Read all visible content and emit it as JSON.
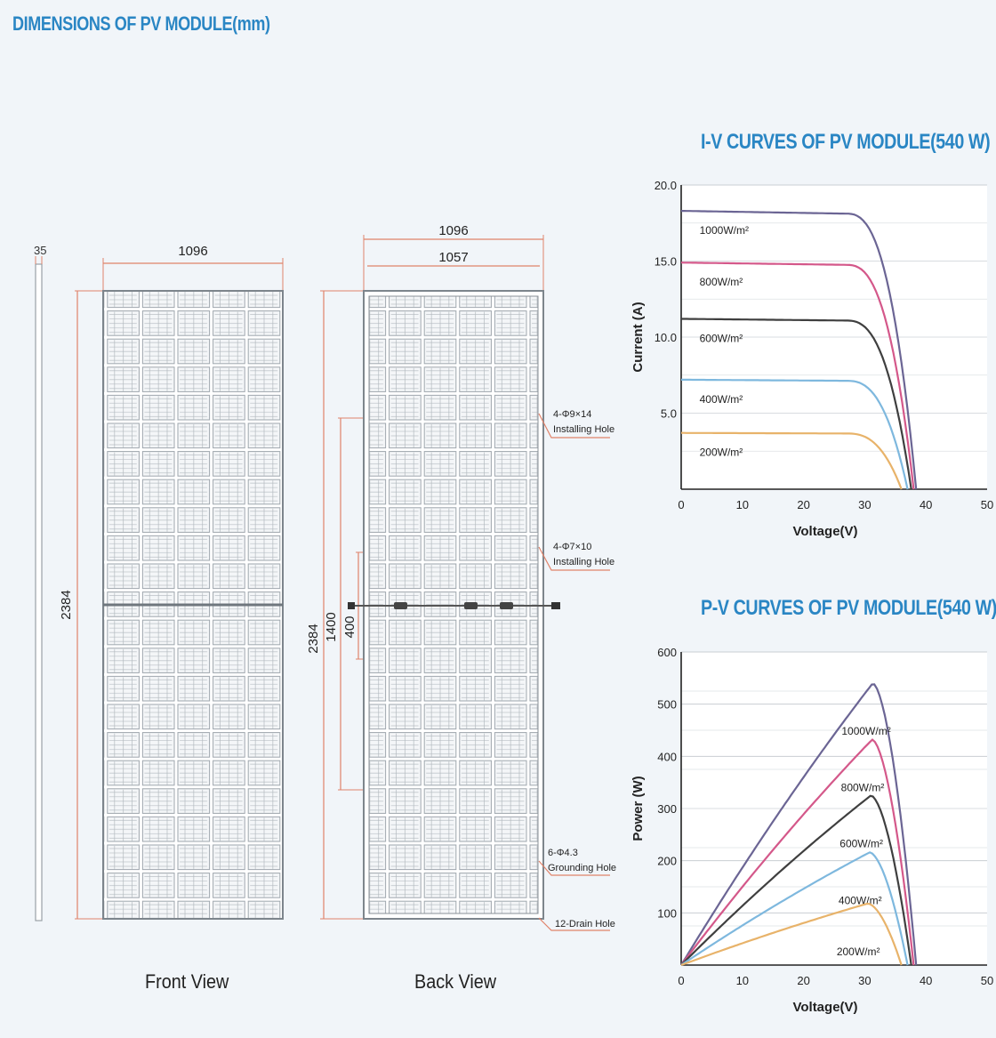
{
  "page": {
    "title": "DIMENSIONS OF PV MODULE(mm)"
  },
  "front_view": {
    "caption": "Front View",
    "frame_thickness": "35",
    "width": "1096",
    "height": "2384"
  },
  "back_view": {
    "caption": "Back View",
    "width_outer": "1096",
    "width_inner": "1057",
    "height": "2384",
    "hole_span_1400": "1400",
    "hole_span_400": "400",
    "callouts": [
      {
        "line1": "4-Φ9×14",
        "line2": "Installing Hole"
      },
      {
        "line1": "4-Φ7×10",
        "line2": "Installing Hole"
      },
      {
        "line1": "6-Φ4.3",
        "line2": "Grounding Hole"
      },
      {
        "line1": "12-Drain Hole",
        "line2": ""
      }
    ]
  },
  "colors": {
    "title_blue": "#2a86c4",
    "dimension_line": "#e0836a",
    "curve_1000": "#6b6594",
    "curve_800": "#d4588a",
    "curve_600": "#3f3f3f",
    "curve_400": "#7eb8de",
    "curve_200": "#e8b36a"
  },
  "chart_data": [
    {
      "type": "line",
      "title": "I-V CURVES OF PV MODULE(540 W)",
      "xlabel": "Voltage(V)",
      "ylabel": "Current (A)",
      "xlim": [
        0,
        50
      ],
      "ylim": [
        0,
        20
      ],
      "x_ticks": [
        "0",
        "10",
        "20",
        "30",
        "40",
        "50"
      ],
      "y_ticks": [
        "5.0",
        "10.0",
        "15.0",
        "20.0"
      ],
      "grid": true,
      "series": [
        {
          "name": "1000W/m²",
          "isc": 18.3,
          "voc": 38.4,
          "knee": 27
        },
        {
          "name": "800W/m²",
          "isc": 14.9,
          "voc": 38.0,
          "knee": 27
        },
        {
          "name": "600W/m²",
          "isc": 11.2,
          "voc": 37.6,
          "knee": 27
        },
        {
          "name": "400W/m²",
          "isc": 7.2,
          "voc": 37.0,
          "knee": 27
        },
        {
          "name": "200W/m²",
          "isc": 3.7,
          "voc": 36.0,
          "knee": 27
        }
      ]
    },
    {
      "type": "line",
      "title": "P-V CURVES OF PV MODULE(540 W)",
      "xlabel": "Voltage(V)",
      "ylabel": "Power (W)",
      "xlim": [
        0,
        50
      ],
      "ylim": [
        0,
        600
      ],
      "x_ticks": [
        "0",
        "10",
        "20",
        "30",
        "40",
        "50"
      ],
      "y_ticks": [
        "100",
        "200",
        "300",
        "400",
        "500",
        "600"
      ],
      "grid": true,
      "series": [
        {
          "name": "1000W/m²",
          "vmp": 31.3,
          "pmax": 540,
          "voc": 38.4
        },
        {
          "name": "800W/m²",
          "vmp": 31.2,
          "pmax": 432,
          "voc": 38.0
        },
        {
          "name": "600W/m²",
          "vmp": 31.0,
          "pmax": 325,
          "voc": 37.6
        },
        {
          "name": "400W/m²",
          "vmp": 30.8,
          "pmax": 216,
          "voc": 37.0
        },
        {
          "name": "200W/m²",
          "vmp": 30.5,
          "pmax": 118,
          "voc": 36.0
        }
      ]
    }
  ]
}
